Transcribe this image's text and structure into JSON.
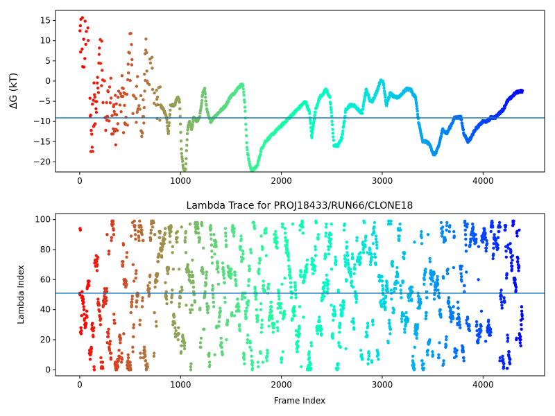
{
  "chart_data": [
    {
      "type": "scatter",
      "title": "",
      "xlabel": "",
      "ylabel": "ΔG (kT)",
      "xlim": [
        -240,
        4610
      ],
      "ylim": [
        -22.5,
        17.5
      ],
      "xticks": [
        0,
        1000,
        2000,
        3000,
        4000
      ],
      "yticks": [
        -20,
        -15,
        -10,
        -5,
        0,
        5,
        10,
        15
      ],
      "xtick_labels": [
        "0",
        "1000",
        "2000",
        "3000",
        "4000"
      ],
      "ytick_labels": [
        "−20",
        "−15",
        "−10",
        "−5",
        "0",
        "5",
        "10",
        "15"
      ],
      "hline": -9.1,
      "colormap": "rainbow (reversed: red at frame 0 → violet at last frame)",
      "frame_max": 4390,
      "grid": false,
      "trace": [
        [
          0,
          10
        ],
        [
          20,
          14
        ],
        [
          40,
          4
        ],
        [
          60,
          10
        ],
        [
          80,
          16
        ],
        [
          100,
          -8
        ],
        [
          120,
          -13
        ],
        [
          150,
          -5
        ],
        [
          180,
          -3
        ],
        [
          200,
          9
        ],
        [
          230,
          0
        ],
        [
          260,
          -7
        ],
        [
          300,
          -4
        ],
        [
          340,
          -10
        ],
        [
          380,
          -8
        ],
        [
          420,
          -3
        ],
        [
          460,
          -12
        ],
        [
          500,
          7
        ],
        [
          540,
          -5
        ],
        [
          580,
          -3
        ],
        [
          620,
          -13
        ],
        [
          660,
          6
        ],
        [
          700,
          2
        ],
        [
          740,
          -4
        ],
        [
          780,
          -3
        ],
        [
          800,
          -6
        ],
        [
          830,
          -7
        ],
        [
          860,
          -9
        ],
        [
          880,
          -13
        ],
        [
          900,
          -6
        ],
        [
          940,
          -6
        ],
        [
          970,
          -4
        ],
        [
          990,
          -5
        ],
        [
          1010,
          -18
        ],
        [
          1030,
          -22
        ],
        [
          1050,
          -22
        ],
        [
          1070,
          -12
        ],
        [
          1090,
          -10
        ],
        [
          1110,
          -12
        ],
        [
          1130,
          -9
        ],
        [
          1160,
          -10
        ],
        [
          1190,
          -9
        ],
        [
          1220,
          -3
        ],
        [
          1240,
          -2
        ],
        [
          1260,
          -7
        ],
        [
          1280,
          -9
        ],
        [
          1300,
          -10
        ],
        [
          1330,
          -9
        ],
        [
          1370,
          -8
        ],
        [
          1410,
          -7
        ],
        [
          1450,
          -6
        ],
        [
          1490,
          -4
        ],
        [
          1530,
          -3
        ],
        [
          1560,
          -2
        ],
        [
          1600,
          -1
        ],
        [
          1620,
          -1
        ],
        [
          1640,
          -7
        ],
        [
          1660,
          -17
        ],
        [
          1680,
          -20
        ],
        [
          1700,
          -22
        ],
        [
          1720,
          -22
        ],
        [
          1760,
          -21
        ],
        [
          1800,
          -17
        ],
        [
          1840,
          -15
        ],
        [
          1880,
          -14
        ],
        [
          1920,
          -13
        ],
        [
          1960,
          -12
        ],
        [
          2000,
          -11
        ],
        [
          2040,
          -10
        ],
        [
          2080,
          -9
        ],
        [
          2120,
          -8
        ],
        [
          2160,
          -7
        ],
        [
          2200,
          -6
        ],
        [
          2240,
          -5
        ],
        [
          2280,
          -8
        ],
        [
          2300,
          -14
        ],
        [
          2320,
          -10
        ],
        [
          2340,
          -7
        ],
        [
          2380,
          -4
        ],
        [
          2420,
          -3
        ],
        [
          2440,
          -2
        ],
        [
          2460,
          -3
        ],
        [
          2480,
          -4
        ],
        [
          2500,
          -9
        ],
        [
          2520,
          -16
        ],
        [
          2560,
          -16
        ],
        [
          2600,
          -14
        ],
        [
          2640,
          -7
        ],
        [
          2680,
          -6
        ],
        [
          2720,
          -6
        ],
        [
          2760,
          -7
        ],
        [
          2800,
          -8
        ],
        [
          2840,
          -2
        ],
        [
          2880,
          -5
        ],
        [
          2900,
          -5
        ],
        [
          2940,
          -3
        ],
        [
          2980,
          0
        ],
        [
          3010,
          0
        ],
        [
          3040,
          -6
        ],
        [
          3080,
          -3
        ],
        [
          3120,
          -4
        ],
        [
          3160,
          -4
        ],
        [
          3200,
          -3
        ],
        [
          3240,
          -2
        ],
        [
          3280,
          -2
        ],
        [
          3300,
          -3
        ],
        [
          3330,
          -4
        ],
        [
          3360,
          -10
        ],
        [
          3400,
          -15
        ],
        [
          3440,
          -15
        ],
        [
          3480,
          -16
        ],
        [
          3500,
          -18
        ],
        [
          3530,
          -18
        ],
        [
          3560,
          -16
        ],
        [
          3600,
          -12
        ],
        [
          3640,
          -13
        ],
        [
          3680,
          -11
        ],
        [
          3720,
          -9
        ],
        [
          3760,
          -9
        ],
        [
          3780,
          -9
        ],
        [
          3810,
          -13
        ],
        [
          3850,
          -15
        ],
        [
          3880,
          -14
        ],
        [
          3920,
          -12
        ],
        [
          3960,
          -11
        ],
        [
          4000,
          -10
        ],
        [
          4040,
          -10
        ],
        [
          4080,
          -9
        ],
        [
          4120,
          -9
        ],
        [
          4160,
          -8
        ],
        [
          4200,
          -7
        ],
        [
          4240,
          -5
        ],
        [
          4280,
          -4
        ],
        [
          4320,
          -3
        ],
        [
          4360,
          -2.5
        ],
        [
          4390,
          -2.5
        ]
      ]
    },
    {
      "type": "scatter",
      "title": "Lambda Trace for PROJ18433/RUN66/CLONE18",
      "xlabel": "Frame Index",
      "ylabel": "Lambda Index",
      "xlim": [
        -240,
        4610
      ],
      "ylim": [
        -4,
        104
      ],
      "xticks": [
        0,
        1000,
        2000,
        3000,
        4000
      ],
      "yticks": [
        0,
        20,
        40,
        60,
        80,
        100
      ],
      "xtick_labels": [
        "0",
        "1000",
        "2000",
        "3000",
        "4000"
      ],
      "ytick_labels": [
        "0",
        "20",
        "40",
        "60",
        "80",
        "100"
      ],
      "hline": 51,
      "colormap": "rainbow (reversed: red at frame 0 → violet at last frame)",
      "frame_max": 4390,
      "grid": false,
      "lambda_range": [
        0,
        99
      ]
    }
  ]
}
